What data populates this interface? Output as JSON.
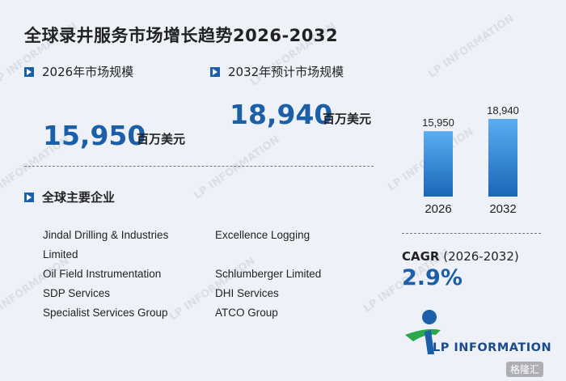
{
  "title": "全球录井服务市场增长趋势2026-2032",
  "market_2026": {
    "label": "2026年市场规模",
    "value": "15,950",
    "unit": "百万美元"
  },
  "market_2032": {
    "label": "2032年预计市场规模",
    "value": "18,940",
    "unit": "百万美元"
  },
  "companies_title": "全球主要企业",
  "companies": [
    "Jindal Drilling & Industries",
    "Limited",
    "Oil Field Instrumentation",
    "SDP Services",
    "Specialist Services Group",
    "Excellence Logging",
    "Schlumberger Limited",
    "DHI Services",
    "ATCO Group"
  ],
  "cagr": {
    "label_bold": "CAGR",
    "label_rest": "(2026-2032)",
    "value": "2.9%"
  },
  "logo_text": "LP INFORMATION",
  "watermark_text": "LP INFORMATION",
  "corner_badge": "格隆汇",
  "colors": {
    "accent": "#1a5fa8",
    "bar_top": "#5aaef0",
    "bar_bottom": "#1a66b8",
    "logo_green": "#2aa84a"
  },
  "chart_data": {
    "type": "bar",
    "categories": [
      "2026",
      "2032"
    ],
    "values": [
      15950,
      18940
    ],
    "value_labels": [
      "15,950",
      "18,940"
    ],
    "title": "",
    "xlabel": "",
    "ylabel": "",
    "ylim": [
      0,
      18940
    ],
    "grid": false
  }
}
